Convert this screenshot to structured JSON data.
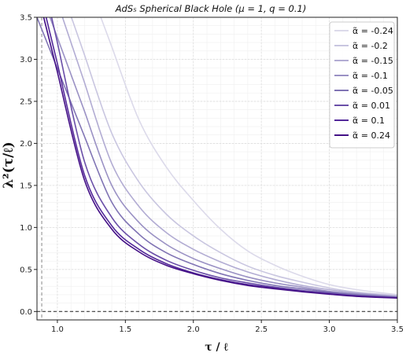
{
  "chart_data": {
    "type": "line",
    "title": "AdS₅ Spherical Black Hole (μ = 1,  q = 0.1)",
    "xlabel": "τ / ℓ",
    "ylabel": "λ²(τ/ℓ)",
    "xlim": [
      0.85,
      3.5
    ],
    "ylim": [
      -0.1,
      3.5
    ],
    "xticks": [
      "1.0",
      "1.5",
      "2.0",
      "2.5",
      "3.0",
      "3.5"
    ],
    "yticks": [
      "0.0",
      "0.5",
      "1.0",
      "1.5",
      "2.0",
      "2.5",
      "3.0",
      "3.5"
    ],
    "grid": true,
    "legend_position": "top-right",
    "reference_lines": [
      {
        "orientation": "horizontal",
        "value": 0.0,
        "style": "dashed"
      },
      {
        "orientation": "vertical",
        "value": 0.885,
        "style": "dashed"
      }
    ],
    "x": [
      1.0,
      1.2,
      1.4,
      1.6,
      1.8,
      2.0,
      2.2,
      2.4,
      2.6,
      2.8,
      3.0,
      3.2,
      3.5
    ],
    "series": [
      {
        "name": "α̃ = -0.24",
        "color": "#dcdaea",
        "values": [
          null,
          null,
          3.15,
          2.28,
          1.72,
          1.32,
          0.98,
          0.72,
          0.55,
          0.42,
          0.32,
          0.26,
          0.2
        ]
      },
      {
        "name": "α̃ = -0.2",
        "color": "#c9c6e0",
        "values": [
          null,
          3.05,
          2.12,
          1.54,
          1.16,
          0.9,
          0.7,
          0.54,
          0.43,
          0.35,
          0.28,
          0.23,
          0.19
        ]
      },
      {
        "name": "α̃ = -0.15",
        "color": "#b2acd3",
        "values": [
          null,
          2.72,
          1.76,
          1.25,
          0.94,
          0.74,
          0.59,
          0.47,
          0.38,
          0.31,
          0.26,
          0.22,
          0.18
        ]
      },
      {
        "name": "α̃ = -0.1",
        "color": "#9a91c4",
        "values": [
          null,
          2.38,
          1.5,
          1.06,
          0.8,
          0.63,
          0.51,
          0.41,
          0.34,
          0.29,
          0.24,
          0.21,
          0.175
        ]
      },
      {
        "name": "α̃ = -0.05",
        "color": "#8074b4",
        "values": [
          null,
          2.08,
          1.3,
          0.92,
          0.7,
          0.56,
          0.45,
          0.37,
          0.31,
          0.27,
          0.23,
          0.2,
          0.17
        ]
      },
      {
        "name": "α̃ = 0.01",
        "color": "#6a4fa8",
        "values": [
          3.2,
          1.78,
          1.12,
          0.8,
          0.61,
          0.49,
          0.4,
          0.34,
          0.29,
          0.25,
          0.22,
          0.19,
          0.165
        ]
      },
      {
        "name": "α̃ = 0.1",
        "color": "#54299a",
        "values": [
          2.95,
          1.62,
          1.02,
          0.74,
          0.57,
          0.46,
          0.38,
          0.32,
          0.28,
          0.24,
          0.21,
          0.185,
          0.162
        ]
      },
      {
        "name": "α̃ = 0.24",
        "color": "#430f86",
        "values": [
          2.85,
          1.56,
          0.98,
          0.71,
          0.55,
          0.45,
          0.37,
          0.31,
          0.27,
          0.235,
          0.205,
          0.18,
          0.16
        ]
      }
    ]
  }
}
